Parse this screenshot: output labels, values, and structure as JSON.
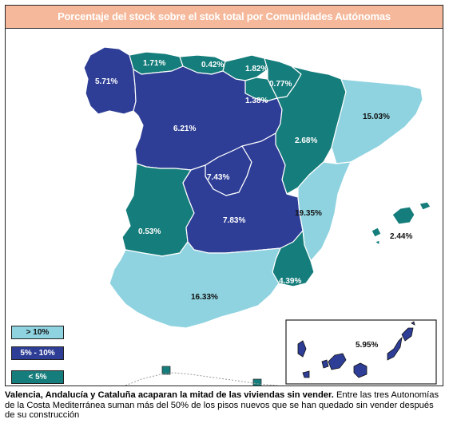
{
  "title": "Porcentaje del stock sobre el stok total por Comunidades Autónomas",
  "colors": {
    "high": "#8fd3e0",
    "mid": "#2e3e96",
    "low": "#157d7b",
    "title_bg": "#f5b89a"
  },
  "regions": [
    {
      "value": "5.71%",
      "category": "mid"
    },
    {
      "value": "1.71%",
      "category": "low"
    },
    {
      "value": "0.42%",
      "category": "low"
    },
    {
      "value": "1.82%",
      "category": "low"
    },
    {
      "value": "0.77%",
      "category": "low"
    },
    {
      "value": "1.38%",
      "category": "low"
    },
    {
      "value": "15.03%",
      "category": "high"
    },
    {
      "value": "6.21%",
      "category": "mid"
    },
    {
      "value": "2.68%",
      "category": "low"
    },
    {
      "value": "7.43%",
      "category": "mid"
    },
    {
      "value": "19.35%",
      "category": "high"
    },
    {
      "value": "2.44%",
      "category": "low"
    },
    {
      "value": "0.53%",
      "category": "low"
    },
    {
      "value": "7.83%",
      "category": "mid"
    },
    {
      "value": "4.39%",
      "category": "low"
    },
    {
      "value": "16.33%",
      "category": "high"
    },
    {
      "value": "5.95%",
      "category": "mid"
    }
  ],
  "legend": [
    {
      "label": "> 10%",
      "category": "high"
    },
    {
      "label": "5% - 10%",
      "category": "mid"
    },
    {
      "label": "< 5%",
      "category": "low"
    }
  ],
  "caption": {
    "bold": "Valencia, Andalucía y Cataluña acaparan la mitad de las viviendas sin vender.",
    "text": " Entre las tres Autonomías de la Costa Mediterránea suman más del 50% de los pisos nuevos que se han quedado sin vender después de su construcción"
  }
}
